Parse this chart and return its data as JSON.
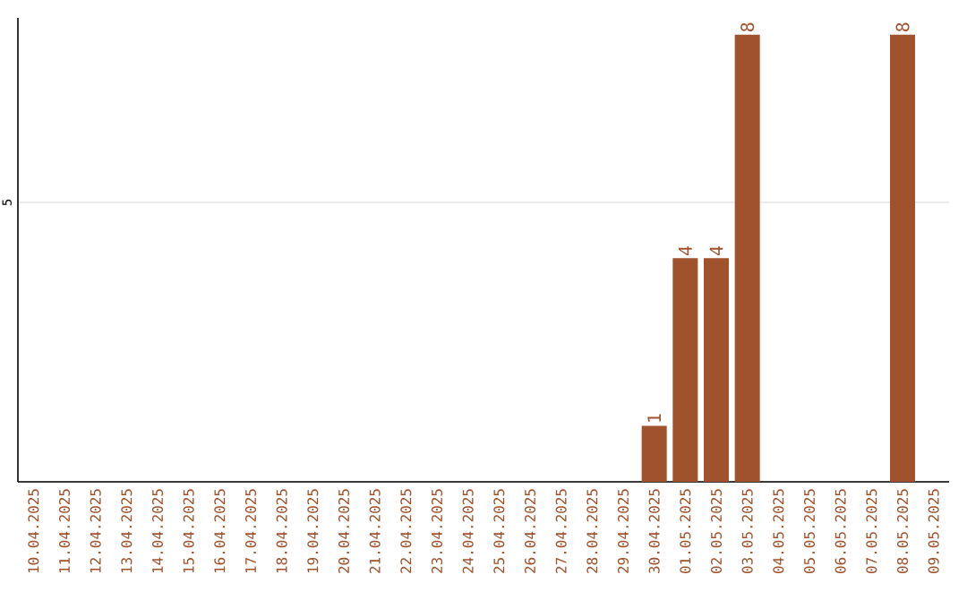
{
  "chart_data": {
    "type": "bar",
    "categories": [
      "10.04.2025",
      "11.04.2025",
      "12.04.2025",
      "13.04.2025",
      "14.04.2025",
      "15.04.2025",
      "16.04.2025",
      "17.04.2025",
      "18.04.2025",
      "19.04.2025",
      "20.04.2025",
      "21.04.2025",
      "22.04.2025",
      "23.04.2025",
      "24.04.2025",
      "25.04.2025",
      "26.04.2025",
      "27.04.2025",
      "28.04.2025",
      "29.04.2025",
      "30.04.2025",
      "01.05.2025",
      "02.05.2025",
      "03.05.2025",
      "04.05.2025",
      "05.05.2025",
      "06.05.2025",
      "07.05.2025",
      "08.05.2025",
      "09.05.2025"
    ],
    "values": [
      null,
      null,
      null,
      null,
      null,
      null,
      null,
      null,
      null,
      null,
      null,
      null,
      null,
      null,
      null,
      null,
      null,
      null,
      null,
      null,
      1,
      4,
      4,
      8,
      null,
      null,
      null,
      null,
      8,
      null
    ],
    "data_labels": true,
    "color": "#a0522d",
    "ylim": [
      0,
      8.3
    ],
    "yticks": [
      {
        "value": 0,
        "label": null
      },
      {
        "value": 5,
        "label": "5"
      }
    ],
    "grid": "y"
  }
}
